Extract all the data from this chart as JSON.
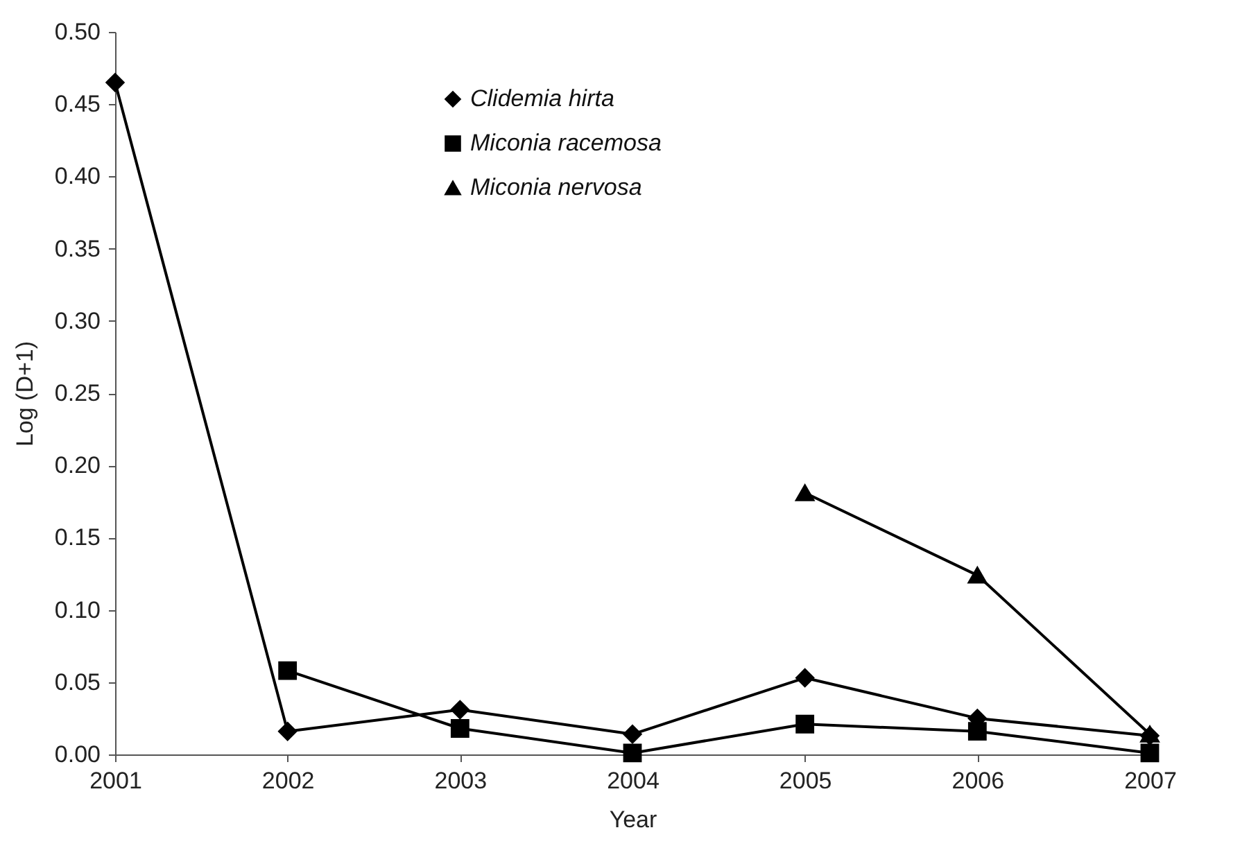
{
  "chart_data": {
    "type": "line",
    "xlabel": "Year",
    "ylabel": "Log (D+1)",
    "x": [
      2001,
      2002,
      2003,
      2004,
      2005,
      2006,
      2007
    ],
    "series": [
      {
        "name": "Clidemia hirta",
        "color": "#000000",
        "marker": "diamond",
        "values": [
          0.465,
          0.016,
          0.031,
          0.014,
          0.053,
          0.025,
          0.013
        ]
      },
      {
        "name": "Miconia racemosa",
        "color": "#000000",
        "marker": "square",
        "values": [
          null,
          0.058,
          0.018,
          0.001,
          0.021,
          0.016,
          0.001
        ]
      },
      {
        "name": "Miconia nervosa",
        "color": "#000000",
        "marker": "triangle",
        "values": [
          null,
          null,
          null,
          null,
          0.181,
          0.124,
          0.014
        ]
      }
    ],
    "xlim": [
      2001,
      2007
    ],
    "xticks": [
      2001,
      2002,
      2003,
      2004,
      2005,
      2006,
      2007
    ],
    "ylim": [
      0,
      0.5
    ],
    "yticks": [
      {
        "value": 0,
        "label": "0.00"
      },
      {
        "value": 0.05,
        "label": "0.05"
      },
      {
        "value": 0.1,
        "label": "0.10"
      },
      {
        "value": 0.15,
        "label": "0.15"
      },
      {
        "value": 0.2,
        "label": "0.20"
      },
      {
        "value": 0.25,
        "label": "0.25"
      },
      {
        "value": 0.3,
        "label": "0.30"
      },
      {
        "value": 0.35,
        "label": "0.35"
      },
      {
        "value": 0.4,
        "label": "0.40"
      },
      {
        "value": 0.45,
        "label": "0.45"
      },
      {
        "value": 0.5,
        "label": "0.50"
      }
    ],
    "grid": false,
    "legend": "top",
    "line_style": "solid"
  }
}
